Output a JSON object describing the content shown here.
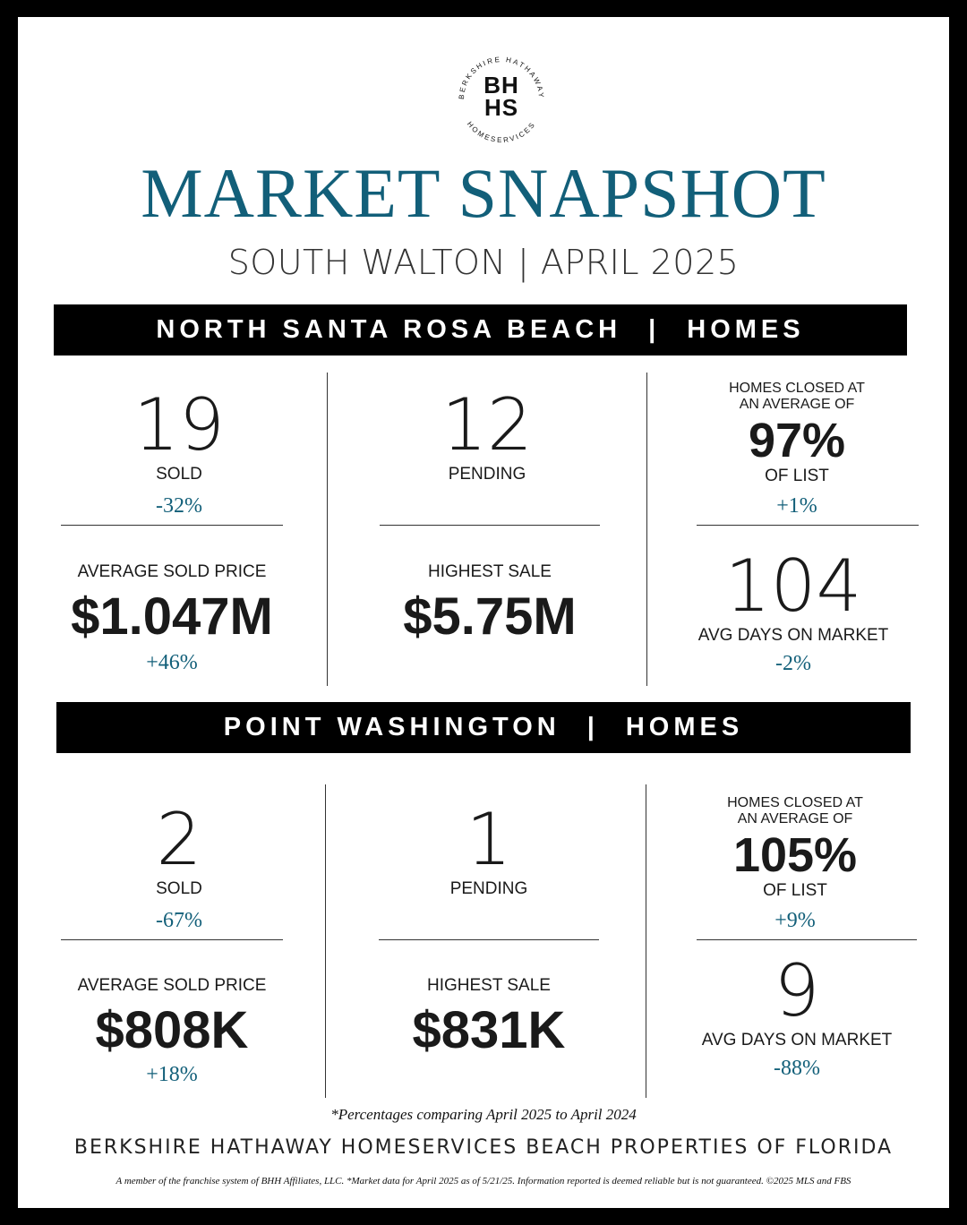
{
  "logo": {
    "monogram_top": "BH",
    "monogram_bottom": "HS",
    "ring_top": "BERKSHIRE HATHAWAY",
    "ring_bottom": "HOMESERVICES"
  },
  "title": "MARKET SNAPSHOT",
  "subtitle": "SOUTH WALTON | APRIL 2025",
  "colors": {
    "accent": "#125f79",
    "banner": "#000000",
    "text": "#1a1a1a"
  },
  "sections": [
    {
      "area": "NORTH SANTA ROSA BEACH",
      "sep": "|",
      "type": "HOMES",
      "sold": {
        "value": "19",
        "label": "SOLD",
        "change": "-32%"
      },
      "pending": {
        "value": "12",
        "label": "PENDING"
      },
      "list": {
        "pre_line1": "HOMES CLOSED AT",
        "pre_line2": "AN AVERAGE OF",
        "value": "97%",
        "label": "OF LIST",
        "change": "+1%"
      },
      "avg_price": {
        "label": "AVERAGE SOLD PRICE",
        "value": "$1.047M",
        "change": "+46%"
      },
      "highest": {
        "label": "HIGHEST SALE",
        "value": "$5.75M"
      },
      "dom": {
        "value": "104",
        "label": "AVG DAYS ON MARKET",
        "change": "-2%"
      }
    },
    {
      "area": "POINT WASHINGTON",
      "sep": "|",
      "type": "HOMES",
      "sold": {
        "value": "2",
        "label": "SOLD",
        "change": "-67%"
      },
      "pending": {
        "value": "1",
        "label": "PENDING"
      },
      "list": {
        "pre_line1": "HOMES CLOSED AT",
        "pre_line2": "AN AVERAGE OF",
        "value": "105%",
        "label": "OF LIST",
        "change": "+9%"
      },
      "avg_price": {
        "label": "AVERAGE SOLD PRICE",
        "value": "$808K",
        "change": "+18%"
      },
      "highest": {
        "label": "HIGHEST SALE",
        "value": "$831K"
      },
      "dom": {
        "value": "9",
        "label": "AVG DAYS ON MARKET",
        "change": "-88%"
      }
    }
  ],
  "footnote": "*Percentages comparing  April 2025 to April 2024",
  "company": "BERKSHIRE HATHAWAY HOMESERVICES BEACH PROPERTIES OF FLORIDA",
  "disclaimer": "A member of the franchise system of BHH Affiliates, LLC. *Market data for April 2025 as of 5/21/25. Information reported is deemed reliable but is not guaranteed. ©2025 MLS and FBS"
}
